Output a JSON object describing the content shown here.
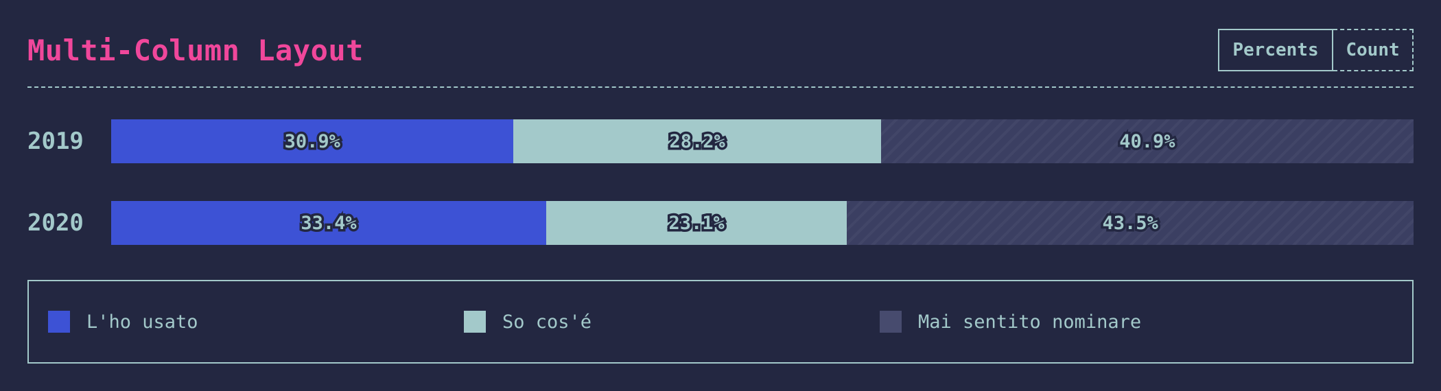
{
  "header": {
    "title": "Multi-Column Layout"
  },
  "toggle": {
    "percents_label": "Percents",
    "count_label": "Count",
    "selected": "Percents"
  },
  "chart_data": {
    "type": "bar",
    "orientation": "horizontal",
    "stacked": true,
    "normalized": true,
    "categories": [
      "2019",
      "2020"
    ],
    "series": [
      {
        "name": "L'ho usato",
        "color": "#3d52d5",
        "values": [
          30.9,
          33.4
        ],
        "labels": [
          "30.9%",
          "33.4%"
        ]
      },
      {
        "name": "So cos'é",
        "color": "#a3c9ca",
        "values": [
          28.2,
          23.1
        ],
        "labels": [
          "28.2%",
          "23.1%"
        ]
      },
      {
        "name": "Mai sentito nominare",
        "color": "#3b3f62",
        "values": [
          40.9,
          43.5
        ],
        "labels": [
          "40.9%",
          "43.5%"
        ]
      }
    ],
    "title": "Multi-Column Layout",
    "xlim": [
      0,
      100
    ],
    "legend_position": "bottom"
  }
}
